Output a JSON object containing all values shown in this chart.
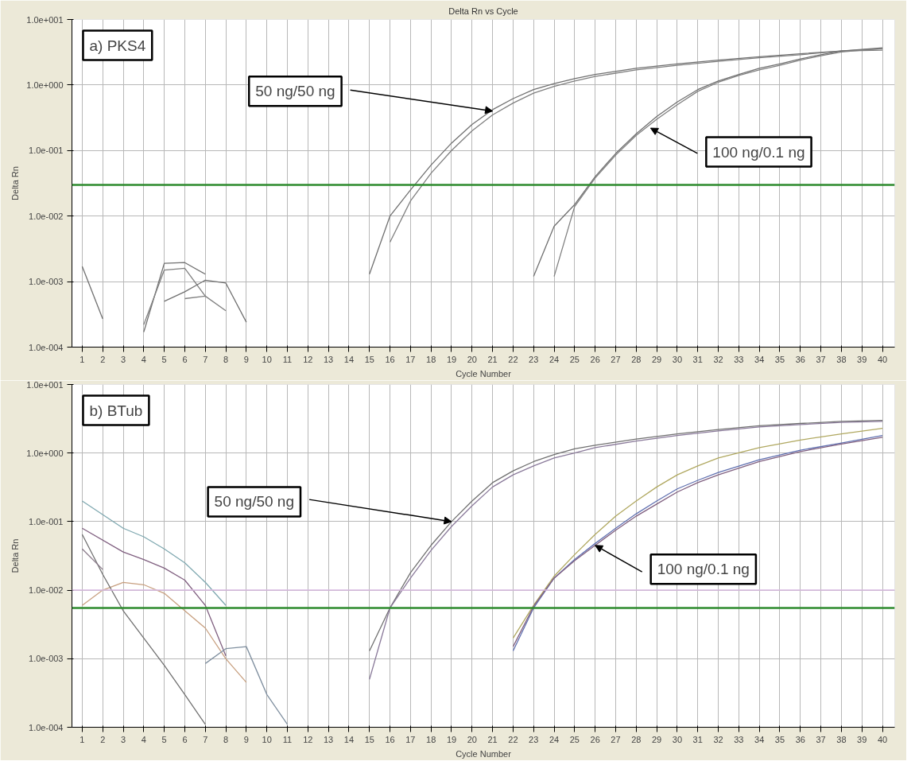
{
  "chart_data": [
    {
      "type": "line",
      "title": "Delta Rn vs Cycle",
      "xlabel": "Cycle Number",
      "ylabel": "Delta Rn",
      "log": true,
      "grid": true,
      "xlim": [
        0.5,
        40.6
      ],
      "xticks": [
        1,
        2,
        3,
        4,
        5,
        6,
        7,
        8,
        9,
        10,
        11,
        12,
        13,
        14,
        15,
        16,
        17,
        18,
        19,
        20,
        21,
        22,
        23,
        24,
        25,
        26,
        27,
        28,
        29,
        30,
        31,
        32,
        33,
        34,
        35,
        36,
        37,
        38,
        39,
        40
      ],
      "ylim": [
        0.0001,
        10
      ],
      "yticks": [
        {
          "value": 0.0001,
          "label": "1.0e-004"
        },
        {
          "value": 0.001,
          "label": "1.0e-003"
        },
        {
          "value": 0.01,
          "label": "1.0e-002"
        },
        {
          "value": 0.1,
          "label": "1.0e-001"
        },
        {
          "value": 1,
          "label": "1.0e+000"
        },
        {
          "value": 10,
          "label": "1.0e+001"
        }
      ],
      "ref_lines": [
        {
          "axis": "y",
          "value": 0.03,
          "color": "#2e8b2e"
        }
      ],
      "annotations": [
        "a) PKS4",
        {
          "text": "50 ng/50 ng",
          "x": 21,
          "y": 0.4
        },
        {
          "text": "100 ng/0.1 ng",
          "x": 28.7,
          "y": 0.22
        }
      ],
      "series": [
        {
          "color": "#707070",
          "x": [
            15,
            16,
            17,
            18,
            19,
            20,
            21,
            22,
            23,
            24,
            25,
            26,
            28,
            30,
            32,
            34,
            36,
            38,
            40
          ],
          "values": [
            0.0013,
            0.01,
            0.025,
            0.06,
            0.13,
            0.25,
            0.42,
            0.62,
            0.85,
            1.05,
            1.25,
            1.45,
            1.8,
            2.1,
            2.4,
            2.7,
            3.0,
            3.3,
            3.6
          ]
        },
        {
          "color": "#808080",
          "x": [
            16,
            17,
            18,
            19,
            20,
            21,
            22,
            23,
            24,
            25,
            26,
            28,
            30,
            32,
            34,
            36,
            38,
            40
          ],
          "values": [
            0.004,
            0.017,
            0.045,
            0.1,
            0.2,
            0.35,
            0.53,
            0.75,
            0.95,
            1.15,
            1.35,
            1.7,
            2.0,
            2.3,
            2.6,
            2.9,
            3.3,
            3.4
          ]
        },
        {
          "color": "#707070",
          "x": [
            23,
            24,
            25,
            26,
            27,
            28,
            29,
            30,
            31,
            32,
            33,
            34,
            35,
            36,
            37,
            38,
            39,
            40
          ],
          "values": [
            0.0012,
            0.007,
            0.015,
            0.04,
            0.09,
            0.18,
            0.33,
            0.55,
            0.85,
            1.15,
            1.45,
            1.8,
            2.1,
            2.5,
            2.9,
            3.3,
            3.5,
            3.7
          ]
        },
        {
          "color": "#808080",
          "x": [
            24,
            25,
            26,
            27,
            28,
            29,
            30,
            31,
            32,
            33,
            34,
            35,
            36,
            37,
            38,
            39,
            40
          ],
          "values": [
            0.0012,
            0.014,
            0.038,
            0.085,
            0.17,
            0.3,
            0.5,
            0.8,
            1.1,
            1.4,
            1.7,
            2.0,
            2.4,
            2.8,
            3.2,
            3.4,
            3.6
          ]
        },
        {
          "color": "#707070",
          "x": [
            1,
            2
          ],
          "values": [
            0.0017,
            0.00027
          ]
        },
        {
          "color": "#707070",
          "x": [
            4,
            5,
            6,
            7
          ],
          "values": [
            0.00017,
            0.0019,
            0.00195,
            0.0013
          ]
        },
        {
          "color": "#808080",
          "x": [
            4,
            5,
            6,
            7
          ],
          "values": [
            0.00022,
            0.0015,
            0.0016,
            0.0006
          ]
        },
        {
          "color": "#707070",
          "x": [
            5,
            6,
            7,
            8,
            9
          ],
          "values": [
            0.0005,
            0.0007,
            0.00105,
            0.00095,
            0.00024
          ]
        },
        {
          "color": "#808080",
          "x": [
            6,
            7,
            8
          ],
          "values": [
            0.00055,
            0.0006,
            0.00036
          ]
        }
      ]
    },
    {
      "type": "line",
      "xlabel": "Cycle Number",
      "ylabel": "Delta Rn",
      "log": true,
      "grid": true,
      "xlim": [
        0.5,
        40.6
      ],
      "xticks": [
        1,
        2,
        3,
        4,
        5,
        6,
        7,
        8,
        9,
        10,
        11,
        12,
        13,
        14,
        15,
        16,
        17,
        18,
        19,
        20,
        21,
        22,
        23,
        24,
        25,
        26,
        27,
        28,
        29,
        30,
        31,
        32,
        33,
        34,
        35,
        36,
        37,
        38,
        39,
        40
      ],
      "ylim": [
        0.0001,
        10
      ],
      "yticks": [
        {
          "value": 0.0001,
          "label": "1.0e-004"
        },
        {
          "value": 0.001,
          "label": "1.0e-003"
        },
        {
          "value": 0.01,
          "label": "1.0e-002"
        },
        {
          "value": 0.1,
          "label": "1.0e-001"
        },
        {
          "value": 1,
          "label": "1.0e+000"
        },
        {
          "value": 10,
          "label": "1.0e+001"
        }
      ],
      "ref_lines": [
        {
          "axis": "y",
          "value": 0.01,
          "color": "#d8b8e0"
        },
        {
          "axis": "y",
          "value": 0.0055,
          "color": "#2e8b2e"
        }
      ],
      "annotations": [
        "b) BTub",
        {
          "text": "50 ng/50 ng",
          "x": 19,
          "y": 0.1
        },
        {
          "text": "100 ng/0.1 ng",
          "x": 26,
          "y": 0.045
        }
      ],
      "series": [
        {
          "color": "#7fa8b0",
          "x": [
            1,
            3,
            4,
            5,
            6,
            7,
            8
          ],
          "values": [
            0.2,
            0.08,
            0.06,
            0.04,
            0.025,
            0.013,
            0.006
          ]
        },
        {
          "color": "#806080",
          "x": [
            1,
            3,
            4,
            5,
            6,
            7,
            8
          ],
          "values": [
            0.08,
            0.036,
            0.028,
            0.021,
            0.014,
            0.006,
            0.0011
          ]
        },
        {
          "color": "#c8a080",
          "x": [
            1,
            2,
            3,
            4,
            5,
            6,
            7,
            8,
            9
          ],
          "values": [
            0.006,
            0.01,
            0.013,
            0.012,
            0.009,
            0.005,
            0.0028,
            0.001,
            0.00045
          ]
        },
        {
          "color": "#707070",
          "x": [
            1,
            2,
            3,
            4,
            5,
            6,
            7
          ],
          "values": [
            0.065,
            0.017,
            0.005,
            0.002,
            0.0008,
            0.0003,
            0.00011
          ]
        },
        {
          "color": "#8a7a8a",
          "x": [
            1,
            2
          ],
          "values": [
            0.04,
            0.02
          ]
        },
        {
          "color": "#8090a0",
          "x": [
            7,
            8,
            9,
            10,
            11
          ],
          "values": [
            0.00085,
            0.0014,
            0.0015,
            0.0003,
            0.00011
          ]
        },
        {
          "color": "#707070",
          "x": [
            15,
            16,
            17,
            18,
            19,
            20,
            21,
            22,
            23,
            24,
            25,
            26,
            28,
            30,
            32,
            34,
            36,
            38,
            40
          ],
          "values": [
            0.0013,
            0.0055,
            0.018,
            0.045,
            0.1,
            0.2,
            0.37,
            0.55,
            0.75,
            0.95,
            1.15,
            1.3,
            1.6,
            1.9,
            2.2,
            2.5,
            2.7,
            2.9,
            3.0
          ]
        },
        {
          "color": "#8a7a9a",
          "x": [
            15,
            16,
            17,
            18,
            19,
            20,
            21,
            22,
            23,
            24,
            25,
            26,
            28,
            30,
            32,
            34,
            36,
            38,
            40
          ],
          "values": [
            0.0005,
            0.0055,
            0.015,
            0.038,
            0.085,
            0.17,
            0.32,
            0.48,
            0.65,
            0.85,
            1.0,
            1.2,
            1.5,
            1.8,
            2.1,
            2.4,
            2.6,
            2.8,
            2.9
          ]
        },
        {
          "color": "#b0a860",
          "x": [
            22,
            23,
            24,
            25,
            26,
            27,
            28,
            29,
            30,
            31,
            32,
            34,
            36,
            38,
            40
          ],
          "values": [
            0.002,
            0.006,
            0.016,
            0.033,
            0.065,
            0.12,
            0.2,
            0.32,
            0.48,
            0.65,
            0.85,
            1.2,
            1.55,
            1.9,
            2.3
          ]
        },
        {
          "color": "#6070b0",
          "x": [
            22,
            23,
            24,
            25,
            26,
            27,
            28,
            29,
            30,
            31,
            32,
            34,
            36,
            38,
            40
          ],
          "values": [
            0.0013,
            0.0055,
            0.015,
            0.028,
            0.048,
            0.08,
            0.13,
            0.2,
            0.3,
            0.4,
            0.52,
            0.8,
            1.1,
            1.4,
            1.8
          ]
        },
        {
          "color": "#806080",
          "x": [
            22,
            23,
            24,
            25,
            26,
            27,
            28,
            29,
            30,
            31,
            32,
            34,
            36,
            38,
            40
          ],
          "values": [
            0.0015,
            0.0058,
            0.015,
            0.027,
            0.045,
            0.075,
            0.12,
            0.18,
            0.27,
            0.37,
            0.48,
            0.75,
            1.05,
            1.35,
            1.7
          ]
        }
      ]
    }
  ]
}
